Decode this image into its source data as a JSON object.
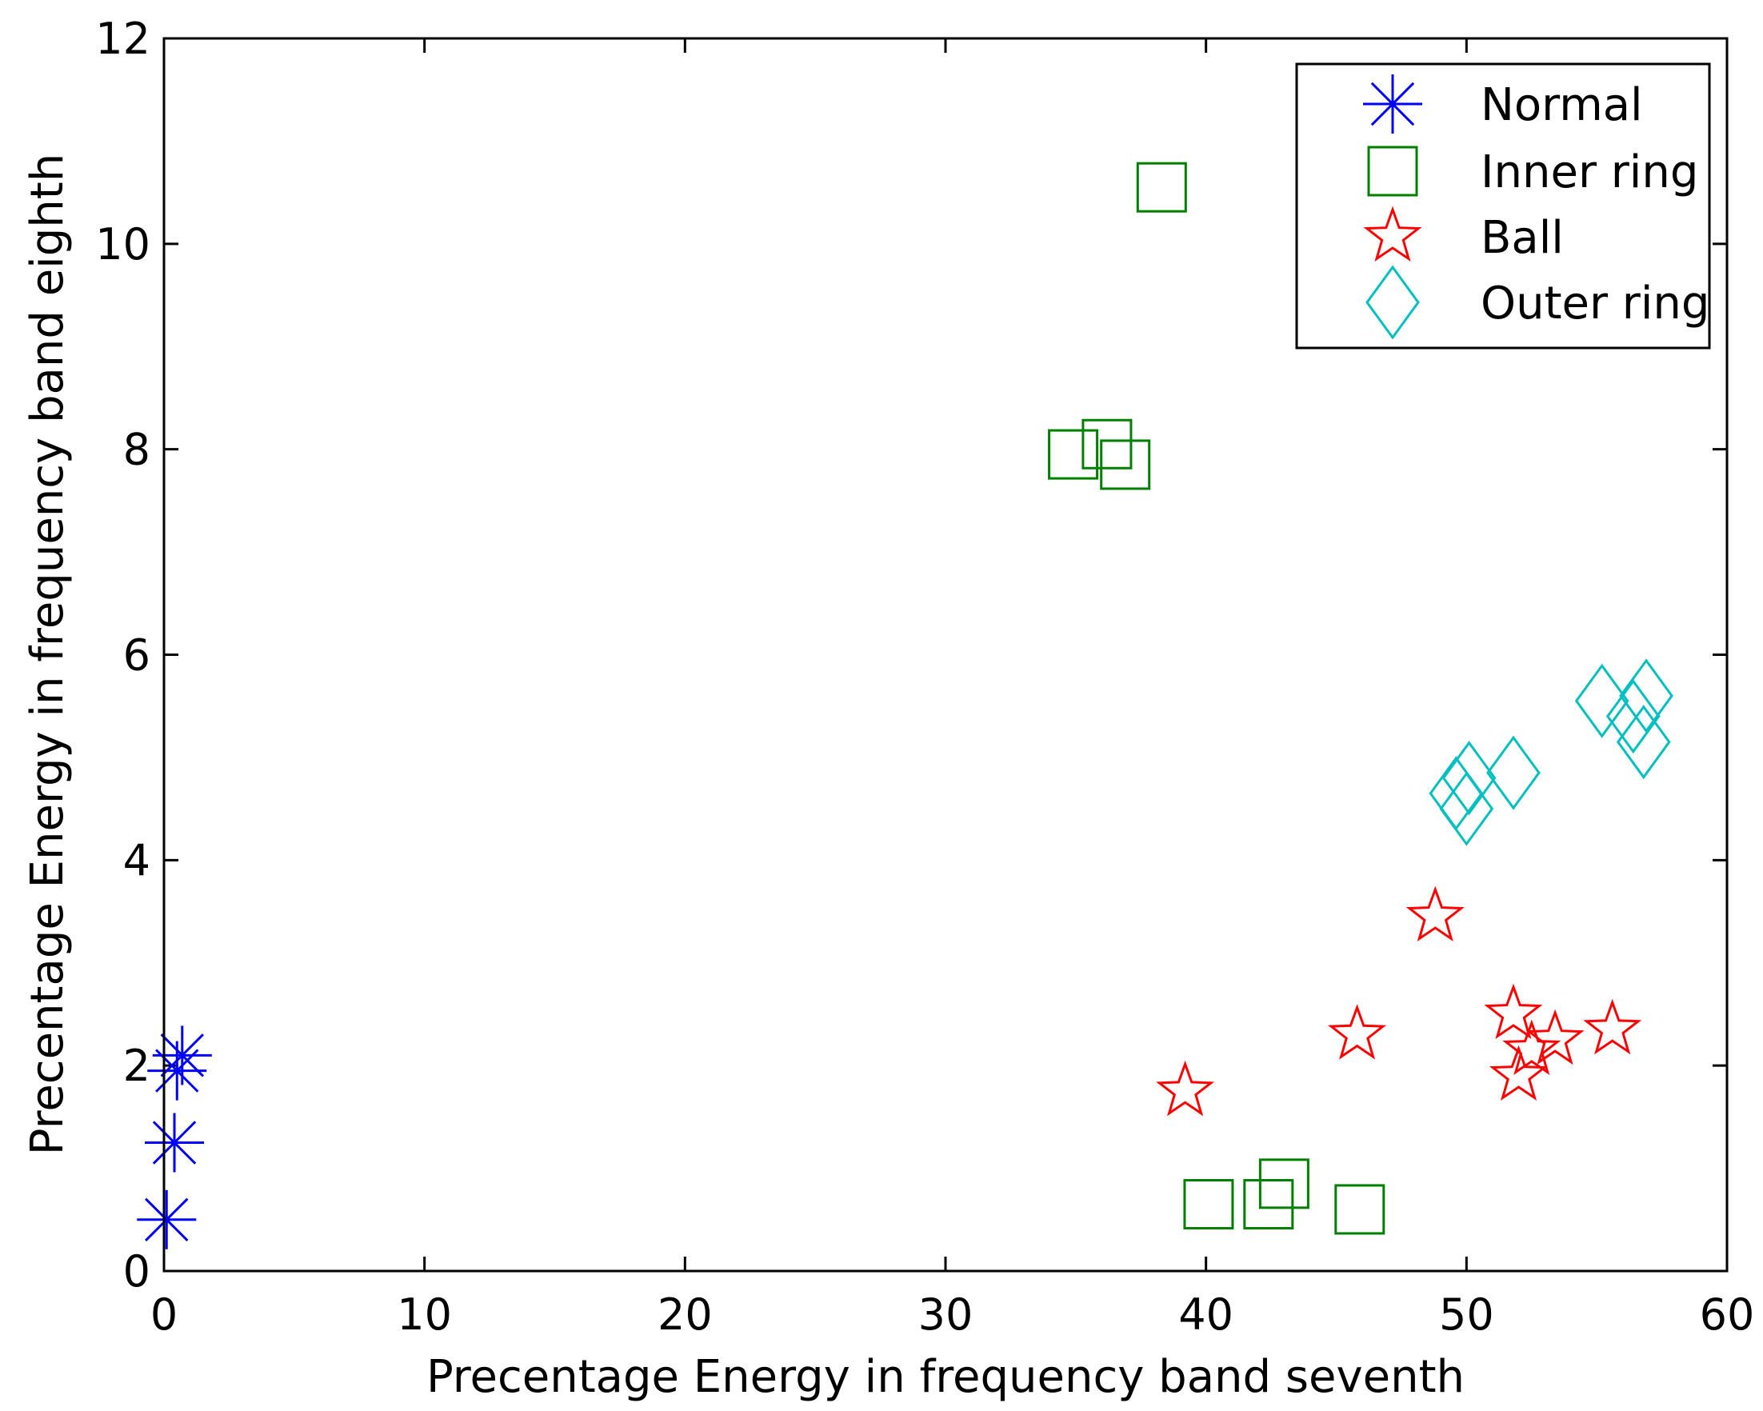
{
  "chart_data": {
    "type": "scatter",
    "title": "",
    "xlabel": "Precentage Energy in frequency band seventh",
    "ylabel": "Precentage Energy in frequency band eighth",
    "xlim": [
      0,
      60
    ],
    "ylim": [
      0,
      12
    ],
    "xticks": [
      0,
      10,
      20,
      30,
      40,
      50,
      60
    ],
    "yticks": [
      0,
      2,
      4,
      6,
      8,
      10,
      12
    ],
    "grid": false,
    "legend_position": "top-right",
    "series": [
      {
        "name": "Normal",
        "marker": "asterisk",
        "color": "#0000ff",
        "points": [
          [
            0.7,
            2.1
          ],
          [
            0.5,
            1.95
          ],
          [
            0.4,
            1.25
          ],
          [
            0.1,
            0.5
          ]
        ]
      },
      {
        "name": "Inner ring",
        "marker": "square",
        "color": "#007f00",
        "points": [
          [
            38.3,
            10.55
          ],
          [
            34.9,
            7.95
          ],
          [
            36.2,
            8.05
          ],
          [
            36.9,
            7.85
          ],
          [
            40.1,
            0.65
          ],
          [
            43.0,
            0.85
          ],
          [
            42.4,
            0.65
          ],
          [
            45.9,
            0.6
          ]
        ]
      },
      {
        "name": "Ball",
        "marker": "pentagram",
        "color": "#ff0000",
        "points": [
          [
            39.2,
            1.75
          ],
          [
            45.8,
            2.3
          ],
          [
            48.8,
            3.45
          ],
          [
            51.8,
            2.5
          ],
          [
            52.5,
            2.15
          ],
          [
            53.4,
            2.25
          ],
          [
            52.0,
            1.9
          ],
          [
            55.6,
            2.35
          ]
        ]
      },
      {
        "name": "Outer ring",
        "marker": "diamond",
        "color": "#00bfbf",
        "points": [
          [
            50.1,
            4.8
          ],
          [
            49.6,
            4.65
          ],
          [
            50.0,
            4.5
          ],
          [
            51.8,
            4.85
          ],
          [
            55.2,
            5.55
          ],
          [
            56.4,
            5.4
          ],
          [
            56.9,
            5.6
          ],
          [
            56.8,
            5.15
          ]
        ]
      }
    ]
  }
}
